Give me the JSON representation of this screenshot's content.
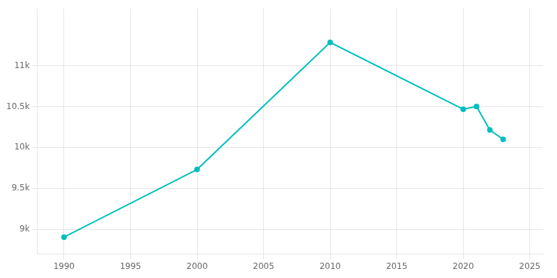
{
  "chart_data": {
    "type": "line",
    "x": [
      1990,
      2000,
      2010,
      2020,
      2021,
      2022,
      2023
    ],
    "values": [
      8907,
      9733,
      11284,
      10468,
      10502,
      10215,
      10100
    ],
    "color": "#00BEBE",
    "marker": "circle",
    "xlim": [
      1988,
      2026
    ],
    "ylim": [
      8700,
      11700
    ],
    "xticks": [
      1990,
      1995,
      2000,
      2005,
      2010,
      2015,
      2020,
      2025
    ],
    "yticks": [
      {
        "value": 9000,
        "label": "9k"
      },
      {
        "value": 9500,
        "label": "9.5k"
      },
      {
        "value": 10000,
        "label": "10k"
      },
      {
        "value": 10500,
        "label": "10.5k"
      },
      {
        "value": 11000,
        "label": "11k"
      }
    ],
    "grid": true
  }
}
